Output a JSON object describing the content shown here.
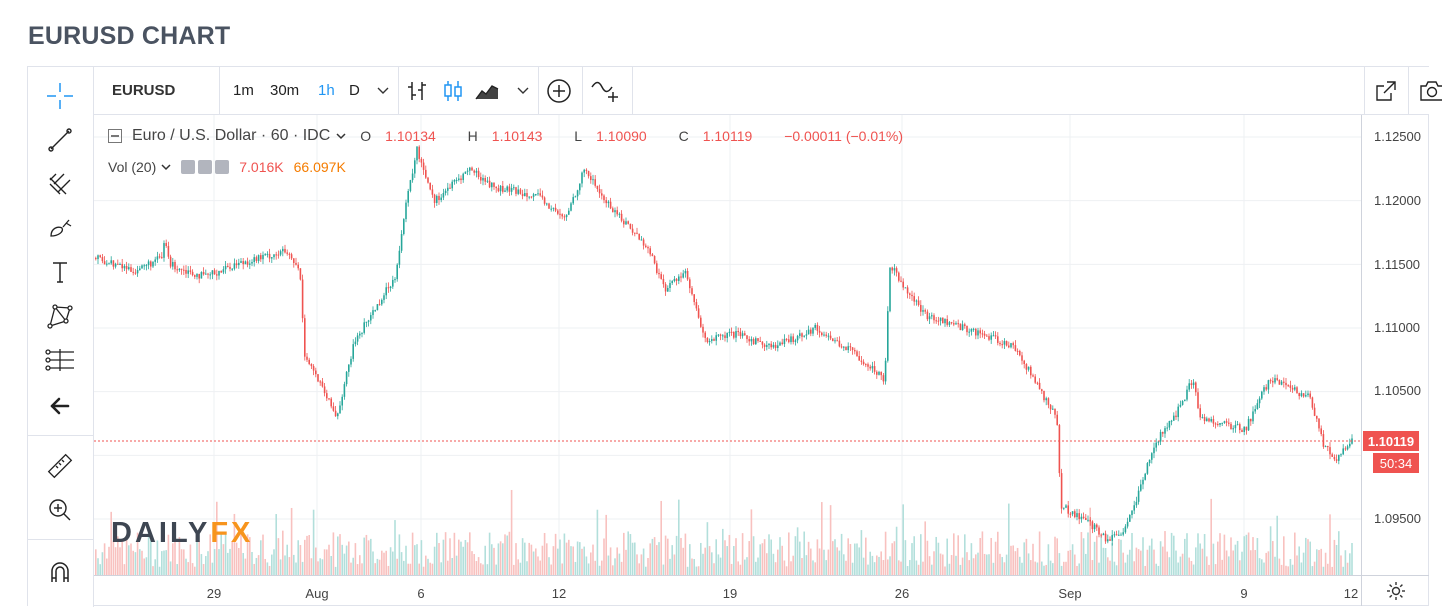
{
  "page": {
    "title": "EURUSD CHART"
  },
  "toolbar": {
    "symbol": "EURUSD",
    "intervals": [
      "1m",
      "30m",
      "1h",
      "D"
    ],
    "active_interval": "1h"
  },
  "legend": {
    "instrument": "Euro / U.S. Dollar · 60 · IDC",
    "open_label": "O",
    "open": "1.10134",
    "high_label": "H",
    "high": "1.10143",
    "low_label": "L",
    "low": "1.10090",
    "close_label": "C",
    "close": "1.10119",
    "change": "−0.00011 (−0.01%)",
    "vol_label": "Vol (20)",
    "vol_value": "7.016K",
    "vol_ma": "66.097K"
  },
  "watermark": {
    "part1": "DAILY",
    "part2": "FX"
  },
  "price_axis": {
    "labels": [
      "1.12500",
      "1.12000",
      "1.11500",
      "1.11000",
      "1.10500",
      "1.09500"
    ],
    "last_price": "1.10119",
    "countdown": "50:34"
  },
  "time_axis": {
    "labels": [
      "29",
      "Aug",
      "6",
      "12",
      "19",
      "26",
      "Sep",
      "9",
      "12"
    ]
  },
  "colors": {
    "up": "#26a69a",
    "down": "#ef5350",
    "active": "#2196f3",
    "grid": "#eef0f3"
  },
  "icons": {
    "left": [
      "crosshair-icon",
      "trend-line-icon",
      "fib-icon",
      "brush-icon",
      "text-icon",
      "pattern-icon",
      "prediction-icon",
      "back-arrow-icon",
      "ruler-icon",
      "zoom-in-icon",
      "magnet-icon"
    ],
    "top": [
      "bar-chart-icon",
      "candle-chart-icon",
      "area-chart-icon",
      "add-indicator-icon",
      "compare-icon",
      "popout-icon",
      "snapshot-icon"
    ]
  }
}
